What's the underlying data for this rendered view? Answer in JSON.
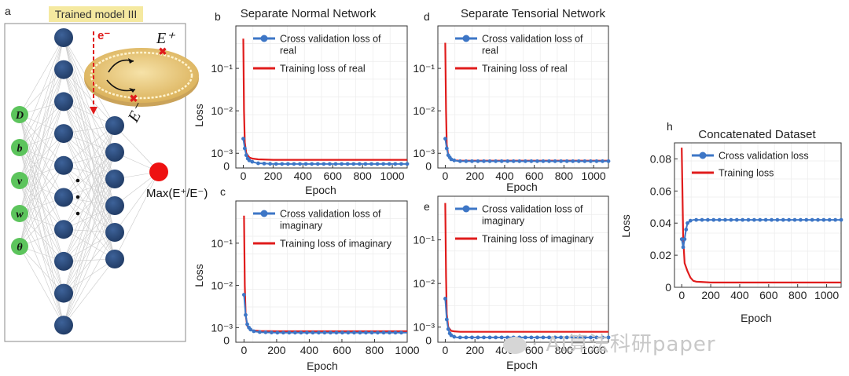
{
  "schematic": {
    "panel_letter": "a",
    "title": "Trained model III",
    "inputs": [
      "D",
      "b",
      "v",
      "w",
      "θ"
    ],
    "electron_label": "e⁻",
    "e_plus_label": "E⁺",
    "e_minus_label": "E⁻",
    "output_label": "Max(E⁺/E⁻)",
    "colors": {
      "neuron": "#2f4f7f",
      "input": "#5cc45c",
      "output": "#ee1111",
      "title_bg": "#f5e9a0",
      "disk": "#e8c57a"
    }
  },
  "chart_data": [
    {
      "id": "b",
      "panel_letter": "b",
      "type": "line",
      "title": "Separate Normal Network",
      "xlabel": "Epoch",
      "ylabel": "Loss",
      "yscale": "log",
      "xlim": [
        -50,
        1100
      ],
      "ylim": [
        0.00045,
        1
      ],
      "x_ticks": [
        0,
        200,
        400,
        600,
        800,
        1000
      ],
      "x_tick_labels": [
        "0",
        "200",
        "400",
        "600",
        "800",
        "1000"
      ],
      "y_ticks": [
        0.001,
        0.01,
        0.1
      ],
      "y_tick_labels": [
        "10⁻³",
        "10⁻²",
        "10⁻¹"
      ],
      "extra_y_labels": [
        {
          "text": "0",
          "at": 0.00048
        }
      ],
      "legend_position": "top-right",
      "series": [
        {
          "name": "Cross validation loss of real",
          "color": "#3d76c6",
          "marker": true,
          "x": [
            0,
            10,
            20,
            30,
            40,
            60,
            80,
            100,
            150,
            200,
            300,
            400,
            500,
            600,
            700,
            800,
            900,
            1000,
            1100
          ],
          "y": [
            0.0022,
            0.0013,
            0.0009,
            0.00075,
            0.00068,
            0.00063,
            0.0006,
            0.00058,
            0.00057,
            0.00056,
            0.00056,
            0.00056,
            0.00056,
            0.00056,
            0.00056,
            0.00056,
            0.00056,
            0.00056,
            0.00056
          ]
        },
        {
          "name": "Training  loss of real",
          "color": "#e01c1c",
          "marker": false,
          "x": [
            0,
            5,
            10,
            20,
            40,
            60,
            100,
            200,
            400,
            600,
            800,
            1000,
            1100
          ],
          "y": [
            0.5,
            0.01,
            0.0018,
            0.001,
            0.0008,
            0.00075,
            0.00072,
            0.0007,
            0.0007,
            0.0007,
            0.0007,
            0.0007,
            0.0007
          ]
        }
      ]
    },
    {
      "id": "d",
      "panel_letter": "d",
      "type": "line",
      "title": "Separate Tensorial Network",
      "xlabel": "Epoch",
      "ylabel": "",
      "yscale": "log",
      "xlim": [
        -50,
        1100
      ],
      "ylim": [
        0.00045,
        1
      ],
      "x_ticks": [
        0,
        200,
        400,
        600,
        800,
        1000
      ],
      "x_tick_labels": [
        "0",
        "200",
        "400",
        "600",
        "800",
        "1000"
      ],
      "y_ticks": [
        0.001,
        0.01,
        0.1
      ],
      "y_tick_labels": [
        "10⁻³",
        "10⁻²",
        "10⁻¹"
      ],
      "extra_y_labels": [
        {
          "text": "0",
          "at": 0.00048
        }
      ],
      "legend_position": "top-right",
      "series": [
        {
          "name": "Cross validation loss of real",
          "color": "#3d76c6",
          "marker": true,
          "x": [
            0,
            10,
            20,
            30,
            40,
            60,
            80,
            100,
            150,
            200,
            300,
            400,
            500,
            600,
            700,
            800,
            900,
            1000,
            1100
          ],
          "y": [
            0.0022,
            0.0013,
            0.0009,
            0.0008,
            0.00072,
            0.00068,
            0.00066,
            0.00065,
            0.00065,
            0.00065,
            0.00065,
            0.00065,
            0.00065,
            0.00065,
            0.00065,
            0.00065,
            0.00065,
            0.00065,
            0.00065
          ]
        },
        {
          "name": "Training  loss of real",
          "color": "#e01c1c",
          "marker": false,
          "x": [
            0,
            5,
            10,
            20,
            40,
            60,
            100,
            200,
            400,
            600,
            800,
            1000,
            1100
          ],
          "y": [
            0.4,
            0.01,
            0.0016,
            0.0009,
            0.0007,
            0.00068,
            0.00067,
            0.00067,
            0.00067,
            0.00067,
            0.00067,
            0.00067,
            0.00067
          ]
        }
      ]
    },
    {
      "id": "c",
      "panel_letter": "c",
      "type": "line",
      "title": "",
      "xlabel": "Epoch",
      "ylabel": "Loss",
      "yscale": "log",
      "xlim": [
        -50,
        1000
      ],
      "ylim": [
        0.00045,
        1
      ],
      "x_ticks": [
        0,
        200,
        400,
        600,
        800,
        1000
      ],
      "x_tick_labels": [
        "0",
        "200",
        "400",
        "600",
        "800",
        "1000"
      ],
      "y_ticks": [
        0.001,
        0.01,
        0.1
      ],
      "y_tick_labels": [
        "10⁻³",
        "10⁻²",
        "10⁻¹"
      ],
      "extra_y_labels": [
        {
          "text": "0",
          "at": 0.00048
        }
      ],
      "legend_position": "top-right",
      "series": [
        {
          "name": "Cross validation loss of imaginary",
          "color": "#3d76c6",
          "marker": true,
          "x": [
            0,
            10,
            20,
            30,
            40,
            60,
            80,
            100,
            150,
            200,
            300,
            400,
            500,
            600,
            700,
            800,
            900,
            1000
          ],
          "y": [
            0.006,
            0.002,
            0.0012,
            0.001,
            0.0009,
            0.00082,
            0.0008,
            0.00078,
            0.00077,
            0.00076,
            0.00076,
            0.00076,
            0.00076,
            0.00076,
            0.00076,
            0.00076,
            0.00076,
            0.00076
          ]
        },
        {
          "name": "Training  loss of imaginary",
          "color": "#e01c1c",
          "marker": false,
          "x": [
            0,
            5,
            10,
            20,
            40,
            60,
            100,
            200,
            400,
            600,
            800,
            1000
          ],
          "y": [
            0.45,
            0.01,
            0.002,
            0.0011,
            0.00088,
            0.00085,
            0.00083,
            0.00082,
            0.00082,
            0.00082,
            0.00082,
            0.00082
          ]
        }
      ]
    },
    {
      "id": "e",
      "panel_letter": "e",
      "type": "line",
      "title": "",
      "xlabel": "Epoch",
      "ylabel": "",
      "yscale": "log",
      "xlim": [
        -50,
        1100
      ],
      "ylim": [
        0.00045,
        1
      ],
      "x_ticks": [
        0,
        200,
        400,
        600,
        800,
        1000
      ],
      "x_tick_labels": [
        "0",
        "200",
        "400",
        "600",
        "800",
        "1000"
      ],
      "y_ticks": [
        0.001,
        0.01,
        0.1
      ],
      "y_tick_labels": [
        "10⁻³",
        "10⁻²",
        "10⁻¹"
      ],
      "extra_y_labels": [
        {
          "text": "0",
          "at": 0.00048
        }
      ],
      "legend_position": "top-right",
      "series": [
        {
          "name": "Cross validation loss of imaginary",
          "color": "#3d76c6",
          "marker": true,
          "x": [
            0,
            10,
            20,
            30,
            40,
            60,
            80,
            100,
            150,
            200,
            300,
            400,
            500,
            600,
            700,
            800,
            900,
            1000,
            1100
          ],
          "y": [
            0.0045,
            0.0015,
            0.0009,
            0.00072,
            0.00065,
            0.0006,
            0.00058,
            0.00058,
            0.00058,
            0.00058,
            0.00058,
            0.00058,
            0.00058,
            0.00058,
            0.00058,
            0.00058,
            0.00058,
            0.00058,
            0.00058
          ]
        },
        {
          "name": "Training  loss of imaginary",
          "color": "#e01c1c",
          "marker": false,
          "x": [
            0,
            5,
            10,
            20,
            40,
            60,
            100,
            200,
            400,
            600,
            800,
            1000,
            1100
          ],
          "y": [
            0.7,
            0.015,
            0.002,
            0.001,
            0.00082,
            0.0008,
            0.00078,
            0.00078,
            0.00078,
            0.00078,
            0.00078,
            0.00078,
            0.00078
          ]
        }
      ]
    },
    {
      "id": "h",
      "panel_letter": "h",
      "type": "line",
      "title": "Concatenated Dataset",
      "xlabel": "Epoch",
      "ylabel": "Loss",
      "yscale": "linear",
      "xlim": [
        -50,
        1100
      ],
      "ylim": [
        0,
        0.09
      ],
      "x_ticks": [
        0,
        200,
        400,
        600,
        800,
        1000
      ],
      "x_tick_labels": [
        "0",
        "200",
        "400",
        "600",
        "800",
        "1000"
      ],
      "y_ticks": [
        0,
        0.02,
        0.04,
        0.06,
        0.08
      ],
      "y_tick_labels": [
        "0",
        "0.02",
        "0.04",
        "0.06",
        "0.08"
      ],
      "extra_y_labels": [],
      "legend_position": "top-right",
      "series": [
        {
          "name": "Cross validation loss",
          "color": "#3d76c6",
          "marker": true,
          "x": [
            0,
            10,
            20,
            30,
            40,
            60,
            80,
            100,
            150,
            200,
            300,
            400,
            500,
            600,
            700,
            800,
            900,
            1000,
            1100
          ],
          "y": [
            0.03,
            0.025,
            0.03,
            0.036,
            0.04,
            0.0415,
            0.042,
            0.042,
            0.042,
            0.042,
            0.042,
            0.042,
            0.042,
            0.042,
            0.042,
            0.042,
            0.042,
            0.042,
            0.042
          ]
        },
        {
          "name": "Training  loss",
          "color": "#e01c1c",
          "marker": false,
          "x": [
            0,
            5,
            10,
            20,
            40,
            60,
            80,
            100,
            200,
            400,
            600,
            800,
            1000,
            1100
          ],
          "y": [
            0.087,
            0.06,
            0.03,
            0.015,
            0.01,
            0.006,
            0.004,
            0.0035,
            0.003,
            0.003,
            0.003,
            0.003,
            0.003,
            0.003
          ]
        }
      ]
    }
  ],
  "watermark": "· AI算法科研paper"
}
